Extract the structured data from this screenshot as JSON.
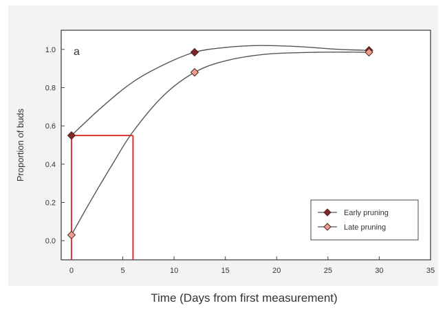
{
  "chart_data": {
    "type": "line",
    "panel_label": "a",
    "xlabel": "Time (Days from first measurement)",
    "ylabel": "Proportion of buds",
    "xlim": [
      -1,
      35
    ],
    "ylim": [
      -0.1,
      1.1
    ],
    "xticks": [
      0,
      5,
      10,
      15,
      20,
      25,
      30,
      35
    ],
    "yticks": [
      0.0,
      0.2,
      0.4,
      0.6,
      0.8,
      1.0
    ],
    "ytick_labels": [
      "0.0",
      "0.2",
      "0.4",
      "0.6",
      "0.8",
      "1.0"
    ],
    "grid": false,
    "legend_position": "bottom-right",
    "series": [
      {
        "name": "Early pruning",
        "color": "#7a2a2a",
        "marker_fill": "#7a2a2a",
        "points": [
          {
            "x": 0,
            "y": 0.55
          },
          {
            "x": 12,
            "y": 0.985
          },
          {
            "x": 29,
            "y": 0.995
          }
        ],
        "curve": [
          {
            "x": 0,
            "y": 0.55
          },
          {
            "x": 3,
            "y": 0.7
          },
          {
            "x": 6,
            "y": 0.83
          },
          {
            "x": 9,
            "y": 0.92
          },
          {
            "x": 12,
            "y": 0.985
          },
          {
            "x": 15,
            "y": 1.01
          },
          {
            "x": 18,
            "y": 1.02
          },
          {
            "x": 22,
            "y": 1.015
          },
          {
            "x": 26,
            "y": 1.0
          },
          {
            "x": 29,
            "y": 0.995
          }
        ]
      },
      {
        "name": "Late pruning",
        "color": "#555555",
        "marker_fill": "#e9a08e",
        "points": [
          {
            "x": 0,
            "y": 0.03
          },
          {
            "x": 12,
            "y": 0.88
          },
          {
            "x": 29,
            "y": 0.985
          }
        ],
        "curve": [
          {
            "x": 0,
            "y": 0.03
          },
          {
            "x": 2,
            "y": 0.22
          },
          {
            "x": 4,
            "y": 0.4
          },
          {
            "x": 6,
            "y": 0.57
          },
          {
            "x": 9,
            "y": 0.76
          },
          {
            "x": 12,
            "y": 0.88
          },
          {
            "x": 15,
            "y": 0.94
          },
          {
            "x": 19,
            "y": 0.975
          },
          {
            "x": 24,
            "y": 0.985
          },
          {
            "x": 29,
            "y": 0.985
          }
        ]
      }
    ],
    "annotations": [
      {
        "type": "reference_lines",
        "color": "#e03030",
        "y_level": 0.55,
        "x_from": 0,
        "x_to": 6
      }
    ]
  }
}
